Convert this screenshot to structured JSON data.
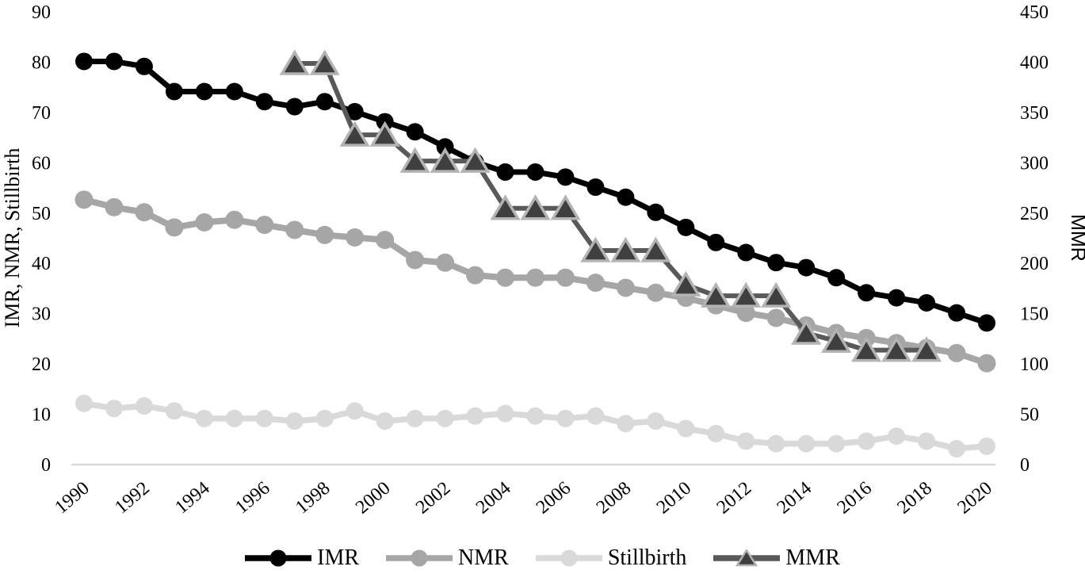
{
  "chart_data": {
    "type": "line",
    "title": "",
    "x": [
      1990,
      1991,
      1992,
      1993,
      1994,
      1995,
      1996,
      1997,
      1998,
      1999,
      2000,
      2001,
      2002,
      2003,
      2004,
      2005,
      2006,
      2007,
      2008,
      2009,
      2010,
      2011,
      2012,
      2013,
      2014,
      2015,
      2016,
      2017,
      2018,
      2019,
      2020
    ],
    "x_axis": {
      "tick_labels": [
        "1990",
        "1992",
        "1994",
        "1996",
        "1998",
        "2000",
        "2002",
        "2004",
        "2006",
        "2008",
        "2010",
        "2012",
        "2014",
        "2016",
        "2018",
        "2020"
      ],
      "label_every_n_years": 2,
      "axis_line_color": "#d9d9d9"
    },
    "left_axis": {
      "label": "IMR, NMR, Stillbirth",
      "min": 0,
      "max": 90,
      "tick_step": 10,
      "tick_labels": [
        "0",
        "10",
        "20",
        "30",
        "40",
        "50",
        "60",
        "70",
        "80",
        "90"
      ]
    },
    "right_axis": {
      "label": "MMR",
      "min": 0,
      "max": 450,
      "tick_step": 50,
      "tick_labels": [
        "0",
        "50",
        "100",
        "150",
        "200",
        "250",
        "300",
        "350",
        "400",
        "450"
      ]
    },
    "grid": "off",
    "legend_position": "bottom",
    "series": [
      {
        "name": "IMR",
        "axis": "left",
        "marker": "circle",
        "color": "#000000",
        "marker_fill": "#000000",
        "marker_stroke": "#000000",
        "values": [
          80,
          80,
          79,
          74,
          74,
          74,
          72,
          71,
          72,
          70,
          68,
          66,
          63,
          60,
          58,
          58,
          57,
          55,
          53,
          50,
          47,
          44,
          42,
          40,
          39,
          37,
          34,
          33,
          32,
          30,
          28
        ]
      },
      {
        "name": "NMR",
        "axis": "left",
        "marker": "circle",
        "color": "#a6a6a6",
        "marker_fill": "#a6a6a6",
        "marker_stroke": "#a6a6a6",
        "values": [
          52.5,
          51,
          50,
          47,
          48,
          48.5,
          47.5,
          46.5,
          45.5,
          45,
          44.5,
          40.5,
          40,
          37.5,
          37,
          37,
          37,
          36,
          35,
          34,
          33,
          31.5,
          30,
          29,
          27.5,
          26,
          25,
          24,
          23,
          22,
          20
        ]
      },
      {
        "name": "Stillbirth",
        "axis": "left",
        "marker": "circle",
        "color": "#d9d9d9",
        "marker_fill": "#d9d9d9",
        "marker_stroke": "#d9d9d9",
        "values": [
          12,
          11,
          11.5,
          10.5,
          9,
          9,
          9,
          8.5,
          9,
          10.5,
          8.5,
          9,
          9,
          9.5,
          10,
          9.5,
          9,
          9.5,
          8,
          8.5,
          7,
          6,
          4.5,
          4,
          4,
          4,
          4.5,
          5.5,
          4.5,
          3,
          3.5
        ]
      },
      {
        "name": "MMR",
        "axis": "right",
        "marker": "triangle",
        "color": "#595959",
        "marker_fill": "#3f3f3f",
        "marker_stroke": "#b3b3b3",
        "values": [
          null,
          null,
          null,
          null,
          null,
          null,
          null,
          398,
          398,
          327,
          327,
          301,
          301,
          301,
          254,
          254,
          254,
          212,
          212,
          212,
          178,
          167,
          167,
          167,
          130,
          122,
          113,
          113,
          113,
          null,
          null
        ]
      }
    ]
  }
}
